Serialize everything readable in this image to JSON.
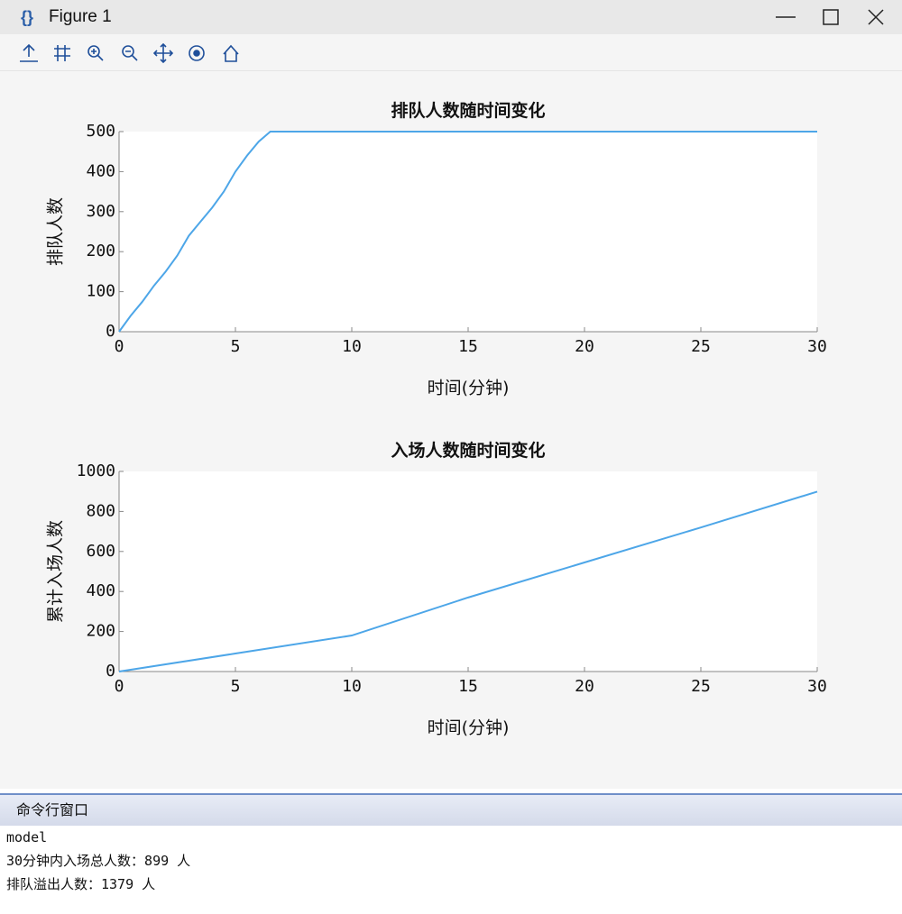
{
  "window": {
    "title": "Figure 1"
  },
  "chart_data": [
    {
      "type": "line",
      "title": "排队人数随时间变化",
      "xlabel": "时间(分钟)",
      "ylabel": "排队人数",
      "x": [
        0,
        0.5,
        1,
        1.5,
        2,
        2.5,
        3,
        3.5,
        4,
        4.5,
        5,
        5.5,
        6,
        6.5,
        10,
        15,
        20,
        25,
        30
      ],
      "series": [
        {
          "name": "排队人数",
          "color": "#4da6e8",
          "values": [
            0,
            40,
            75,
            115,
            150,
            190,
            240,
            275,
            310,
            350,
            400,
            440,
            475,
            500,
            500,
            500,
            500,
            500,
            500
          ]
        }
      ],
      "xlim": [
        0,
        30
      ],
      "xticks": [
        0,
        5,
        10,
        15,
        20,
        25,
        30
      ],
      "ylim": [
        0,
        500
      ],
      "yticks": [
        0,
        100,
        200,
        300,
        400,
        500
      ]
    },
    {
      "type": "line",
      "title": "入场人数随时间变化",
      "xlabel": "时间(分钟)",
      "ylabel": "累计入场人数",
      "x": [
        0,
        5,
        10,
        15,
        20,
        25,
        30
      ],
      "series": [
        {
          "name": "累计入场人数",
          "color": "#4da6e8",
          "values": [
            0,
            90,
            180,
            370,
            545,
            720,
            899
          ]
        }
      ],
      "xlim": [
        0,
        30
      ],
      "xticks": [
        0,
        5,
        10,
        15,
        20,
        25,
        30
      ],
      "ylim": [
        0,
        1000
      ],
      "yticks": [
        0,
        200,
        400,
        600,
        800,
        1000
      ]
    }
  ],
  "console": {
    "title": "命令行窗口",
    "lines": [
      "model",
      "30分钟内入场总人数：899 人",
      "排队溢出人数：1379 人"
    ]
  }
}
